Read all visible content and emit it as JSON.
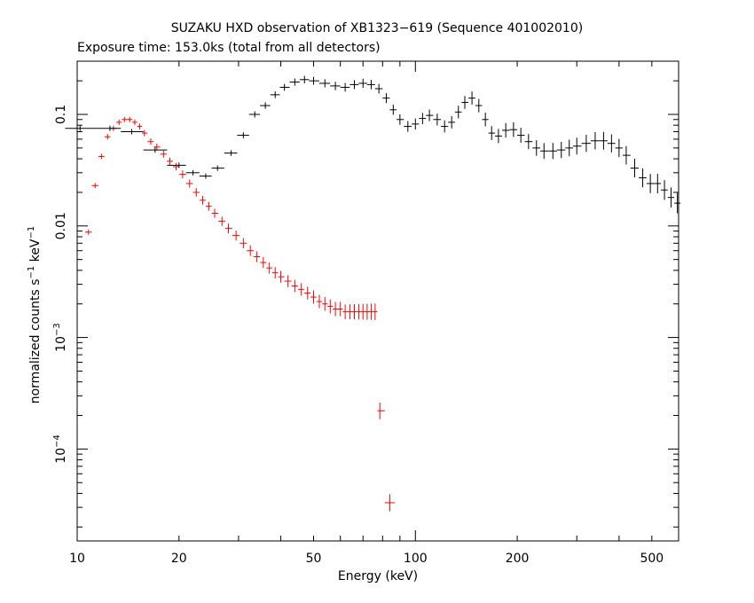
{
  "chart_data": {
    "type": "scatter",
    "title": "SUZAKU HXD observation of XB1323−619 (Sequence 401002010)",
    "subtitle": "Exposure time: 153.0ks (total from all detectors)",
    "xlabel": "Energy (keV)",
    "ylabel_main": "normalized counts s",
    "ylabel_mid": " keV",
    "ylabel_sup": "−1",
    "x_scale": "log",
    "y_scale": "log",
    "xlim": [
      10,
      600
    ],
    "ylim": [
      1.5e-05,
      0.3
    ],
    "grid": false,
    "x_ticks": [
      {
        "value": 10,
        "label": "10"
      },
      {
        "value": 20,
        "label": "20"
      },
      {
        "value": 50,
        "label": "50"
      },
      {
        "value": 100,
        "label": "100"
      },
      {
        "value": 200,
        "label": "200"
      },
      {
        "value": 500,
        "label": "500"
      }
    ],
    "y_ticks": [
      {
        "value": 0.1,
        "label": "0.1",
        "base": "",
        "exp": ""
      },
      {
        "value": 0.01,
        "label": "0.01",
        "base": "",
        "exp": ""
      },
      {
        "value": 0.001,
        "label": "",
        "base": "10",
        "exp": "−3"
      },
      {
        "value": 0.0001,
        "label": "",
        "base": "10",
        "exp": "−4"
      }
    ],
    "series": [
      {
        "color": "#ff0000",
        "x": [
          10.8,
          11.3,
          11.8,
          12.3,
          12.8,
          13.3,
          13.8,
          14.3,
          14.8,
          15.3,
          15.8,
          16.5,
          17.2,
          18.0,
          18.8,
          19.6,
          20.5,
          21.5,
          22.5,
          23.5,
          24.5,
          25.5,
          26.8,
          28.0,
          29.5,
          31.0,
          32.5,
          34.0,
          35.5,
          37.0,
          38.5,
          40.0,
          42.0,
          44.0,
          46.0,
          48.0,
          50.0,
          52.0,
          54.0,
          56.0,
          58.0,
          60.0,
          62.0,
          64.0,
          66.0,
          68.0,
          70.0,
          72.0,
          74.0,
          76.0,
          78.5,
          84.0
        ],
        "y": [
          0.0088,
          0.023,
          0.042,
          0.063,
          0.075,
          0.085,
          0.09,
          0.09,
          0.085,
          0.078,
          0.068,
          0.057,
          0.051,
          0.044,
          0.038,
          0.034,
          0.029,
          0.024,
          0.02,
          0.017,
          0.015,
          0.013,
          0.011,
          0.0095,
          0.0082,
          0.007,
          0.006,
          0.0053,
          0.0047,
          0.0042,
          0.0038,
          0.0035,
          0.0032,
          0.0029,
          0.0027,
          0.0025,
          0.0023,
          0.0021,
          0.002,
          0.0019,
          0.0018,
          0.0018,
          0.0017,
          0.0017,
          0.0017,
          0.0017,
          0.0017,
          0.0017,
          0.0017,
          0.0017,
          0.00022,
          3.3e-05
        ]
      },
      {
        "color": "#000000",
        "x": [
          10.2,
          12.5,
          14.5,
          17.0,
          20.0,
          22.0,
          24.0,
          26.0,
          28.5,
          31.0,
          33.5,
          36.0,
          38.5,
          41.0,
          44.0,
          47.0,
          50.0,
          54.0,
          58.0,
          62.0,
          66.0,
          70.0,
          74.0,
          78.0,
          82.0,
          86.0,
          90.0,
          95.0,
          100.0,
          105.0,
          110.0,
          116.0,
          122.0,
          128.0,
          134.0,
          140.0,
          147.0,
          154.0,
          161.0,
          168.0,
          176.0,
          185.0,
          195.0,
          205.0,
          216.0,
          228.0,
          240.0,
          255.0,
          270.0,
          285.0,
          300.0,
          320.0,
          340.0,
          360.0,
          380.0,
          400.0,
          420.0,
          445.0,
          470.0,
          495.0,
          520.0,
          545.0,
          570.0,
          595.0
        ],
        "y": [
          0.075,
          0.075,
          0.07,
          0.048,
          0.035,
          0.03,
          0.028,
          0.033,
          0.045,
          0.065,
          0.1,
          0.12,
          0.15,
          0.175,
          0.195,
          0.205,
          0.2,
          0.19,
          0.18,
          0.175,
          0.185,
          0.19,
          0.185,
          0.17,
          0.14,
          0.11,
          0.09,
          0.078,
          0.082,
          0.092,
          0.098,
          0.09,
          0.078,
          0.085,
          0.105,
          0.128,
          0.14,
          0.12,
          0.09,
          0.068,
          0.064,
          0.072,
          0.073,
          0.065,
          0.057,
          0.05,
          0.047,
          0.047,
          0.048,
          0.05,
          0.052,
          0.055,
          0.058,
          0.058,
          0.055,
          0.05,
          0.043,
          0.033,
          0.027,
          0.024,
          0.024,
          0.021,
          0.018,
          0.016
        ]
      }
    ]
  }
}
